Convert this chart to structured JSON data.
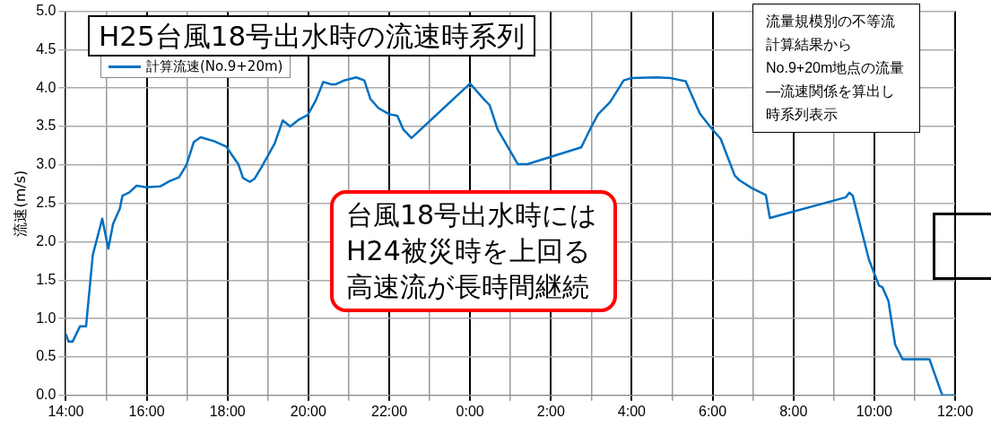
{
  "chart_data": {
    "type": "line",
    "title": "H25台風18号出水時の流速時系列",
    "ylabel": "流速(m/s)",
    "xlim": [
      "--09-15T14:00",
      "--09-16T12:00"
    ],
    "xticks": [
      {
        "value": "--09-15T14:00",
        "label": "14:00"
      },
      {
        "value": "--09-15T15:00",
        "label": null
      },
      {
        "value": "--09-15T16:00",
        "label": "16:00"
      },
      {
        "value": "--09-15T17:00",
        "label": null
      },
      {
        "value": "--09-15T18:00",
        "label": "18:00"
      },
      {
        "value": "--09-15T19:00",
        "label": null
      },
      {
        "value": "--09-15T20:00",
        "label": "20:00"
      },
      {
        "value": "--09-15T21:00",
        "label": null
      },
      {
        "value": "--09-15T22:00",
        "label": "22:00"
      },
      {
        "value": "--09-15T23:00",
        "label": null
      },
      {
        "value": "--09-16T00:00",
        "label": "0:00"
      },
      {
        "value": "--09-16T01:00",
        "label": null
      },
      {
        "value": "--09-16T02:00",
        "label": "2:00"
      },
      {
        "value": "--09-16T03:00",
        "label": null
      },
      {
        "value": "--09-16T04:00",
        "label": "4:00"
      },
      {
        "value": "--09-16T05:00",
        "label": null
      },
      {
        "value": "--09-16T06:00",
        "label": "6:00"
      },
      {
        "value": "--09-16T07:00",
        "label": null
      },
      {
        "value": "--09-16T08:00",
        "label": "8:00"
      },
      {
        "value": "--09-16T09:00",
        "label": null
      },
      {
        "value": "--09-16T10:00",
        "label": "10:00"
      },
      {
        "value": "--09-16T11:00",
        "label": null
      },
      {
        "value": "--09-16T12:00",
        "label": "12:00"
      }
    ],
    "ylim": [
      0,
      5
    ],
    "yticks": [
      {
        "value": 0,
        "label": "0.0"
      },
      {
        "value": 0.5,
        "label": "0.5"
      },
      {
        "value": 1,
        "label": "1.0"
      },
      {
        "value": 1.5,
        "label": "1.5"
      },
      {
        "value": 2,
        "label": "2.0"
      },
      {
        "value": 2.5,
        "label": "2.5"
      },
      {
        "value": 3,
        "label": "3.0"
      },
      {
        "value": 3.5,
        "label": "3.5"
      },
      {
        "value": 4,
        "label": "4.0"
      },
      {
        "value": 4.5,
        "label": "4.5"
      },
      {
        "value": 5,
        "label": "5.0"
      }
    ],
    "grid": true,
    "legend": "top left",
    "marker": "none",
    "line_style": "solid",
    "series": [
      {
        "name": "計算流速(No.9+20m)",
        "color": "#0070c0",
        "x": [
          "--09-15T14:00",
          "--09-15T14:04",
          "--09-15T14:10",
          "--09-15T14:21",
          "--09-15T14:30",
          "--09-15T14:40",
          "--09-15T14:54",
          "--09-15T15:03",
          "--09-15T15:10",
          "--09-15T15:20",
          "--09-15T15:24",
          "--09-15T15:34",
          "--09-15T15:45",
          "--09-15T15:59",
          "--09-15T16:20",
          "--09-15T16:34",
          "--09-15T16:48",
          "--09-15T16:59",
          "--09-15T17:10",
          "--09-15T17:20",
          "--09-15T17:40",
          "--09-15T17:58",
          "--09-15T18:12",
          "--09-15T18:16",
          "--09-15T18:23",
          "--09-15T18:33",
          "--09-15T18:40",
          "--09-15T18:51",
          "--09-15T19:10",
          "--09-15T19:22",
          "--09-15T19:33",
          "--09-15T19:46",
          "--09-15T19:59",
          "--09-15T20:11",
          "--09-15T20:22",
          "--09-15T20:34",
          "--09-15T20:41",
          "--09-15T20:53",
          "--09-15T21:11",
          "--09-15T21:23",
          "--09-15T21:32",
          "--09-15T21:44",
          "--09-15T22:00",
          "--09-15T22:12",
          "--09-15T22:21",
          "--09-15T22:33",
          "--09-16T00:00",
          "--09-16T00:22",
          "--09-16T00:29",
          "--09-16T00:41",
          "--09-16T01:11",
          "--09-16T01:25",
          "--09-16T02:45",
          "--09-16T02:59",
          "--09-16T03:10",
          "--09-16T03:28",
          "--09-16T03:48",
          "--09-16T03:59",
          "--09-16T04:37",
          "--09-16T04:58",
          "--09-16T05:20",
          "--09-16T05:41",
          "--09-16T05:58",
          "--09-16T06:12",
          "--09-16T06:33",
          "--09-16T06:40",
          "--09-16T06:58",
          "--09-16T07:19",
          "--09-16T07:25",
          "--09-16T09:18",
          "--09-16T09:23",
          "--09-16T09:28",
          "--09-16T09:52",
          "--09-16T10:07",
          "--09-16T10:12",
          "--09-16T10:21",
          "--09-16T10:31",
          "--09-16T10:42",
          "--09-16T11:22",
          "--09-16T11:41",
          "--09-16T11:59"
        ],
        "values": [
          0.8,
          0.7,
          0.7,
          0.9,
          0.9,
          1.83,
          2.3,
          1.91,
          2.23,
          2.43,
          2.6,
          2.64,
          2.73,
          2.71,
          2.72,
          2.79,
          2.84,
          3.0,
          3.3,
          3.36,
          3.31,
          3.24,
          3.06,
          3.01,
          2.83,
          2.78,
          2.82,
          2.98,
          3.28,
          3.58,
          3.5,
          3.59,
          3.65,
          3.84,
          4.08,
          4.05,
          4.05,
          4.1,
          4.14,
          4.1,
          3.86,
          3.74,
          3.66,
          3.64,
          3.46,
          3.35,
          4.06,
          3.84,
          3.78,
          3.46,
          3.01,
          3.01,
          3.23,
          3.48,
          3.66,
          3.82,
          4.1,
          4.13,
          4.14,
          4.13,
          4.09,
          3.67,
          3.48,
          3.34,
          2.86,
          2.8,
          2.7,
          2.61,
          2.31,
          2.58,
          2.64,
          2.6,
          1.77,
          1.43,
          1.41,
          1.23,
          0.66,
          0.47,
          0.47,
          0,
          0
        ]
      }
    ],
    "annotations": [
      "台風18号出水時にはH24被災時を上回る高速流が長時間継続",
      "流量規模別の不等流計算結果から",
      "No.9+20m地点の流量—流速関係を算出し時系列表示"
    ]
  }
}
